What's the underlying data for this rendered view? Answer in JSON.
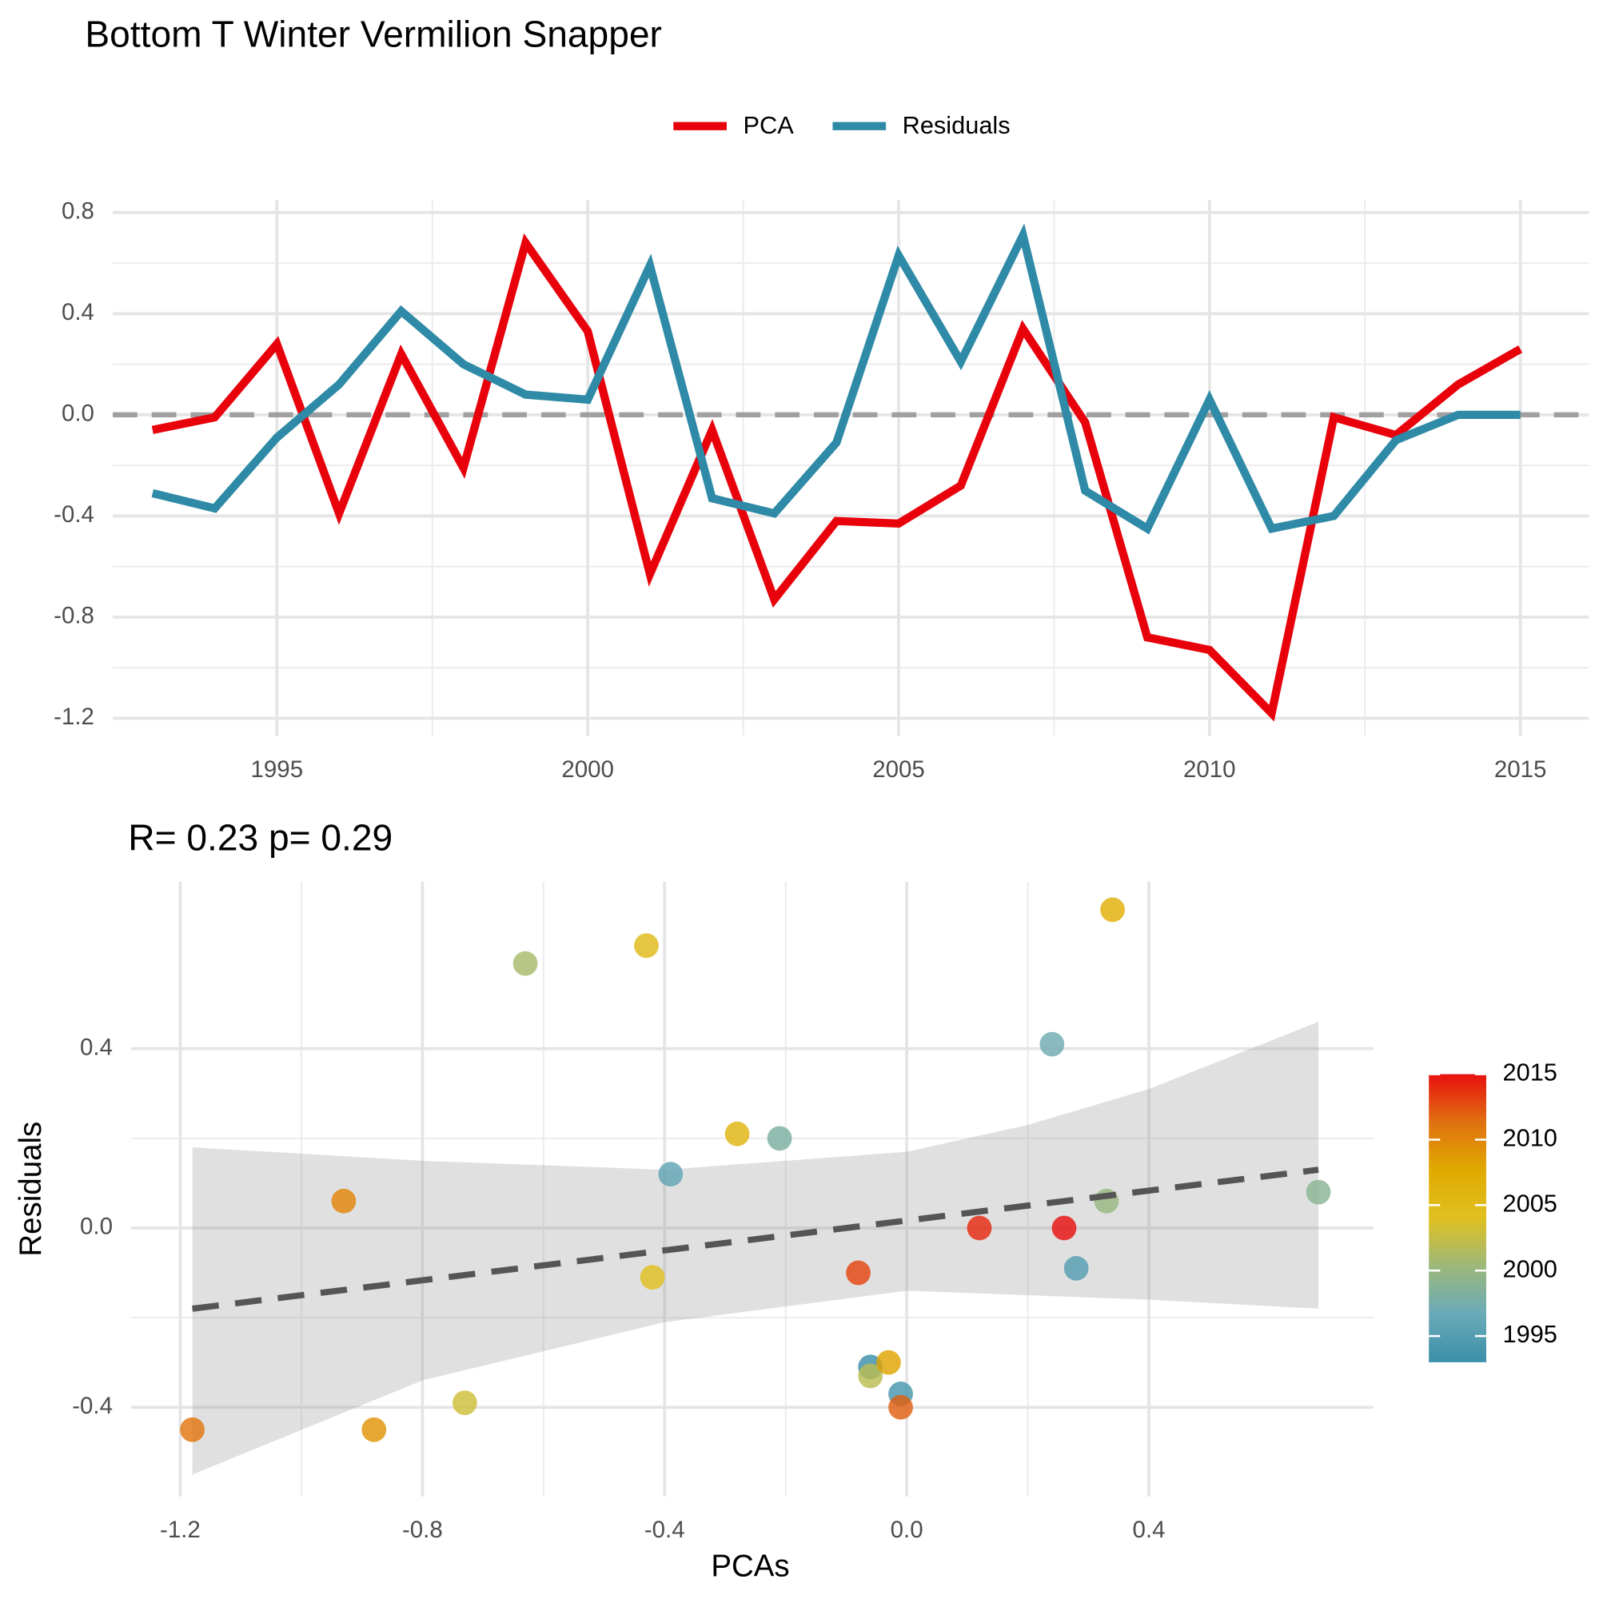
{
  "chart_data": [
    {
      "type": "line",
      "title": "Bottom T Winter Vermilion Snapper",
      "x": [
        1993,
        1994,
        1995,
        1996,
        1997,
        1998,
        1999,
        2000,
        2001,
        2002,
        2003,
        2004,
        2005,
        2006,
        2007,
        2008,
        2009,
        2010,
        2011,
        2012,
        2013,
        2014,
        2015
      ],
      "series": [
        {
          "name": "PCA",
          "color": "#e8000b",
          "values": [
            -0.06,
            -0.01,
            0.28,
            -0.39,
            0.24,
            -0.21,
            0.68,
            0.33,
            -0.63,
            -0.06,
            -0.73,
            -0.42,
            -0.43,
            -0.28,
            0.34,
            -0.03,
            -0.88,
            -0.93,
            -1.18,
            -0.01,
            -0.08,
            0.12,
            0.26
          ]
        },
        {
          "name": "Residuals",
          "color": "#2e8aa6",
          "values": [
            -0.31,
            -0.37,
            -0.09,
            0.12,
            0.41,
            0.2,
            0.08,
            0.06,
            0.59,
            -0.33,
            -0.39,
            -0.11,
            0.63,
            0.21,
            0.71,
            -0.3,
            -0.45,
            0.06,
            -0.45,
            -0.4,
            -0.1,
            0.0,
            0.0
          ]
        }
      ],
      "xlim": [
        1992.36,
        2016.1
      ],
      "xticks": [
        1995,
        2000,
        2005,
        2010,
        2015
      ],
      "ylim": [
        -1.27,
        0.85
      ],
      "yticks": [
        -1.2,
        -0.8,
        -0.4,
        {
          "value": 0,
          "label": "0.0"
        },
        0.4,
        0.8
      ],
      "hline": 0,
      "grid": true,
      "legend": "top"
    },
    {
      "type": "scatter",
      "title": "R= 0.23  p= 0.29",
      "x_label": "PCAs",
      "y_label": "Residuals",
      "xlim": [
        -1.281,
        0.771
      ],
      "xticks": [
        -1.2,
        -0.8,
        -0.4,
        {
          "value": 0,
          "label": "0.0"
        },
        0.4
      ],
      "ylim": [
        -0.599,
        0.773
      ],
      "yticks": [
        -0.4,
        {
          "value": 0,
          "label": "0.0"
        },
        0.4
      ],
      "fit": {
        "x": [
          -1.18,
          0.68
        ],
        "y": [
          -0.18,
          0.13
        ]
      },
      "band": {
        "x": [
          -1.18,
          -0.8,
          -0.4,
          0,
          0.2,
          0.4,
          0.68
        ],
        "upper": [
          0.18,
          0.15,
          0.13,
          0.17,
          0.23,
          0.31,
          0.46
        ],
        "lower": [
          -0.55,
          -0.34,
          -0.21,
          -0.14,
          -0.15,
          -0.16,
          -0.18
        ]
      },
      "colorbar": {
        "lim": [
          1993,
          2015
        ],
        "ticks": [
          1995,
          2000,
          2005,
          2010,
          2015
        ],
        "colors": [
          "#3a8fa8",
          "#6aaab8",
          "#9cb87a",
          "#e0c020",
          "#e0aa00",
          "#e07010",
          "#e81010"
        ]
      },
      "grid": true
    }
  ]
}
